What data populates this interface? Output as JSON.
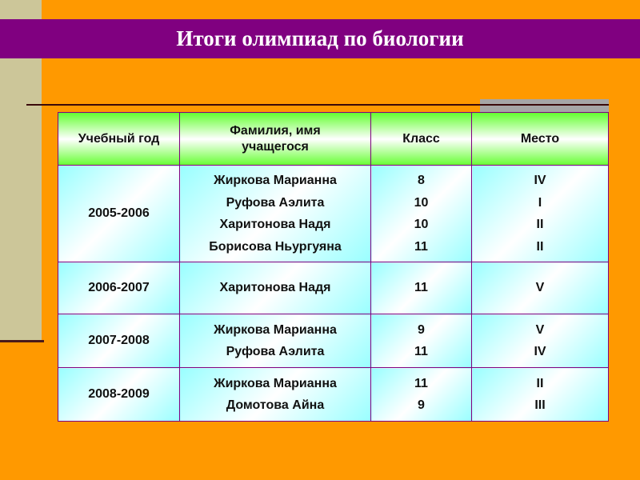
{
  "title": "Итоги олимпиад по биологии",
  "table": {
    "headers": [
      "Учебный год",
      "Фамилия, имя учащегося",
      "Класс",
      "Место"
    ],
    "rows": [
      {
        "year": "2005-2006",
        "names": [
          "Жиркова Марианна",
          "Руфова Аэлита",
          "Харитонова Надя",
          "Борисова Ньургуяна"
        ],
        "grades": [
          "8",
          "10",
          "10",
          "11"
        ],
        "places": [
          "IV",
          "I",
          "II",
          "II"
        ]
      },
      {
        "year": "2006-2007",
        "names": [
          "Харитонова Надя"
        ],
        "grades": [
          "11"
        ],
        "places": [
          "V"
        ]
      },
      {
        "year": "2007-2008",
        "names": [
          "Жиркова Марианна",
          "Руфова Аэлита"
        ],
        "grades": [
          "9",
          "11"
        ],
        "places": [
          "V",
          "IV"
        ]
      },
      {
        "year": "2008-2009",
        "names": [
          "Жиркова Марианна",
          "Домотова Айна"
        ],
        "grades": [
          "11",
          "9"
        ],
        "places": [
          "II",
          "III"
        ]
      }
    ]
  },
  "colors": {
    "background": "#FF9900",
    "title_band": "#800080",
    "header_fill": "#66FF33",
    "cell_fill": "#99FFFF"
  }
}
